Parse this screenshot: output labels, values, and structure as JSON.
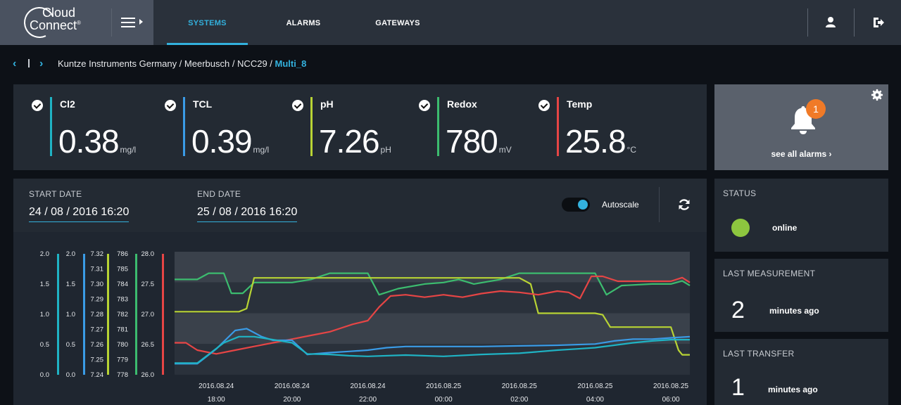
{
  "header": {
    "logo_line1": "Cloud",
    "logo_line2": "Connect",
    "logo_reg": "®",
    "tabs": [
      {
        "label": "SYSTEMS",
        "active": true
      },
      {
        "label": "ALARMS",
        "active": false
      },
      {
        "label": "GATEWAYS",
        "active": false
      }
    ],
    "user_icon": "user-icon",
    "logout_icon": "logout-icon"
  },
  "breadcrumb": {
    "back": "‹",
    "forward": "›",
    "path": "Kuntze Instruments Germany / Meerbusch / NCC29 / ",
    "current": "Multi_8"
  },
  "metrics": [
    {
      "name": "Cl2",
      "value": "0.38",
      "unit": "mg/l",
      "color": "#1fb3c4"
    },
    {
      "name": "TCL",
      "value": "0.39",
      "unit": "mg/l",
      "color": "#3a9be6"
    },
    {
      "name": "pH",
      "value": "7.26",
      "unit": "pH",
      "color": "#b8d334"
    },
    {
      "name": "Redox",
      "value": "780",
      "unit": "mV",
      "color": "#3cbc6f"
    },
    {
      "name": "Temp",
      "value": "25.8",
      "unit": "°C",
      "color": "#e64545"
    }
  ],
  "alarms": {
    "count": "1",
    "link_text": "see all alarms ›",
    "badge_color": "#f07a27"
  },
  "dates": {
    "start_label": "START DATE",
    "start_value": "24 / 08 / 2016 16:20",
    "end_label": "END DATE",
    "end_value": "25 / 08 / 2016 16:20",
    "autoscale_label": "Autoscale",
    "autoscale_on": true
  },
  "status": {
    "title": "STATUS",
    "value": "online",
    "color": "#8dc63f"
  },
  "last_measurement": {
    "title": "LAST MEASUREMENT",
    "value": "2",
    "suffix": "minutes ago"
  },
  "last_transfer": {
    "title": "LAST TRANSFER",
    "value": "1",
    "suffix": "minutes ago"
  },
  "chart_data": {
    "type": "line",
    "x_tick_labels": [
      [
        "2016.08.24",
        "18:00"
      ],
      [
        "2016.08.24",
        "20:00"
      ],
      [
        "2016.08.24",
        "22:00"
      ],
      [
        "2016.08.25",
        "00:00"
      ],
      [
        "2016.08.25",
        "02:00"
      ],
      [
        "2016.08.25",
        "04:00"
      ],
      [
        "2016.08.25",
        "06:00"
      ]
    ],
    "x_hours": [
      18,
      20,
      22,
      24,
      26,
      28,
      30
    ],
    "x_range_hours": [
      16.9,
      30.5
    ],
    "axes": [
      {
        "id": "cl2",
        "color": "#1fb3c4",
        "min": 0,
        "max": 2.0,
        "ticks": [
          "2.0",
          "1.5",
          "1.0",
          "0.5",
          "0.0"
        ]
      },
      {
        "id": "tcl",
        "color": "#3a9be6",
        "min": 0,
        "max": 2.0,
        "ticks": [
          "2.0",
          "1.5",
          "1.0",
          "0.5",
          "0.0"
        ]
      },
      {
        "id": "ph",
        "color": "#b8d334",
        "min": 7.24,
        "max": 7.32,
        "ticks": [
          "7.32",
          "7.31",
          "7.30",
          "7.29",
          "7.28",
          "7.27",
          "7.26",
          "7.25",
          "7.24"
        ]
      },
      {
        "id": "redox",
        "color": "#3cbc6f",
        "min": 778,
        "max": 786,
        "ticks": [
          "786",
          "785",
          "784",
          "783",
          "782",
          "781",
          "780",
          "779",
          "778"
        ]
      },
      {
        "id": "temp",
        "color": "#e64545",
        "min": 26.0,
        "max": 28.0,
        "ticks": [
          "28.0",
          "27.5",
          "27.0",
          "26.5",
          "26.0"
        ]
      }
    ],
    "series": [
      {
        "axis": "redox",
        "color": "#3cbc6f",
        "points": [
          [
            16.9,
            784.2
          ],
          [
            17.5,
            784.2
          ],
          [
            17.8,
            784.6
          ],
          [
            18.2,
            784.6
          ],
          [
            18.4,
            783.3
          ],
          [
            18.7,
            783.3
          ],
          [
            19.0,
            784.0
          ],
          [
            20.0,
            784.0
          ],
          [
            20.5,
            784.2
          ],
          [
            21.0,
            784.6
          ],
          [
            22.0,
            784.6
          ],
          [
            22.3,
            783.2
          ],
          [
            22.8,
            783.6
          ],
          [
            23.5,
            783.9
          ],
          [
            24.0,
            784.0
          ],
          [
            24.4,
            784.2
          ],
          [
            24.8,
            783.9
          ],
          [
            25.5,
            784.2
          ],
          [
            26.0,
            784.6
          ],
          [
            27.5,
            784.6
          ],
          [
            28.0,
            784.6
          ],
          [
            28.3,
            783.2
          ],
          [
            28.7,
            783.8
          ],
          [
            29.5,
            783.9
          ],
          [
            30.0,
            783.9
          ],
          [
            30.3,
            784.1
          ],
          [
            30.5,
            783.8
          ]
        ]
      },
      {
        "axis": "ph",
        "color": "#b8d334",
        "points": [
          [
            16.9,
            7.281
          ],
          [
            18.6,
            7.281
          ],
          [
            18.8,
            7.283
          ],
          [
            19.0,
            7.303
          ],
          [
            20.0,
            7.303
          ],
          [
            22.0,
            7.303
          ],
          [
            24.0,
            7.303
          ],
          [
            26.0,
            7.303
          ],
          [
            26.3,
            7.299
          ],
          [
            26.5,
            7.28
          ],
          [
            28.0,
            7.28
          ],
          [
            28.2,
            7.279
          ],
          [
            28.4,
            7.271
          ],
          [
            29.5,
            7.271
          ],
          [
            30.0,
            7.271
          ],
          [
            30.2,
            7.256
          ],
          [
            30.3,
            7.253
          ],
          [
            30.5,
            7.253
          ]
        ]
      },
      {
        "axis": "temp",
        "color": "#e64545",
        "points": [
          [
            16.9,
            26.52
          ],
          [
            17.2,
            26.52
          ],
          [
            17.5,
            26.4
          ],
          [
            18.0,
            26.34
          ],
          [
            18.5,
            26.4
          ],
          [
            19.0,
            26.46
          ],
          [
            19.5,
            26.52
          ],
          [
            20.0,
            26.58
          ],
          [
            20.5,
            26.64
          ],
          [
            21.0,
            26.7
          ],
          [
            21.3,
            26.76
          ],
          [
            21.6,
            26.82
          ],
          [
            22.0,
            26.88
          ],
          [
            22.3,
            27.1
          ],
          [
            22.6,
            27.28
          ],
          [
            23.0,
            27.3
          ],
          [
            23.5,
            27.26
          ],
          [
            24.0,
            27.3
          ],
          [
            24.5,
            27.26
          ],
          [
            25.0,
            27.32
          ],
          [
            25.5,
            27.36
          ],
          [
            26.0,
            27.34
          ],
          [
            26.5,
            27.3
          ],
          [
            27.0,
            27.36
          ],
          [
            27.3,
            27.34
          ],
          [
            27.6,
            27.24
          ],
          [
            27.9,
            27.6
          ],
          [
            28.2,
            27.6
          ],
          [
            28.6,
            27.52
          ],
          [
            29.0,
            27.52
          ],
          [
            29.5,
            27.52
          ],
          [
            30.0,
            27.52
          ],
          [
            30.3,
            27.58
          ],
          [
            30.5,
            27.5
          ]
        ]
      },
      {
        "axis": "tcl",
        "color": "#3a9be6",
        "points": [
          [
            16.9,
            0.18
          ],
          [
            17.5,
            0.18
          ],
          [
            18.0,
            0.42
          ],
          [
            18.5,
            0.72
          ],
          [
            18.8,
            0.75
          ],
          [
            19.2,
            0.62
          ],
          [
            19.5,
            0.56
          ],
          [
            20.0,
            0.56
          ],
          [
            20.4,
            0.33
          ],
          [
            21.0,
            0.36
          ],
          [
            21.5,
            0.38
          ],
          [
            22.0,
            0.4
          ],
          [
            22.5,
            0.44
          ],
          [
            23.0,
            0.46
          ],
          [
            24.0,
            0.46
          ],
          [
            25.0,
            0.46
          ],
          [
            26.0,
            0.47
          ],
          [
            27.0,
            0.48
          ],
          [
            28.0,
            0.5
          ],
          [
            28.5,
            0.55
          ],
          [
            29.0,
            0.58
          ],
          [
            29.5,
            0.58
          ],
          [
            30.0,
            0.6
          ],
          [
            30.5,
            0.62
          ]
        ]
      },
      {
        "axis": "cl2",
        "color": "#1fb3c4",
        "points": [
          [
            16.9,
            0.19
          ],
          [
            17.5,
            0.19
          ],
          [
            18.2,
            0.52
          ],
          [
            18.6,
            0.62
          ],
          [
            19.0,
            0.62
          ],
          [
            19.5,
            0.57
          ],
          [
            20.0,
            0.52
          ],
          [
            20.4,
            0.34
          ],
          [
            21.0,
            0.33
          ],
          [
            21.5,
            0.31
          ],
          [
            22.0,
            0.3
          ],
          [
            23.0,
            0.32
          ],
          [
            24.0,
            0.3
          ],
          [
            25.0,
            0.33
          ],
          [
            26.0,
            0.35
          ],
          [
            27.0,
            0.4
          ],
          [
            27.5,
            0.42
          ],
          [
            28.0,
            0.44
          ],
          [
            28.5,
            0.48
          ],
          [
            29.0,
            0.52
          ],
          [
            29.5,
            0.55
          ],
          [
            30.0,
            0.57
          ],
          [
            30.5,
            0.57
          ]
        ]
      }
    ]
  }
}
